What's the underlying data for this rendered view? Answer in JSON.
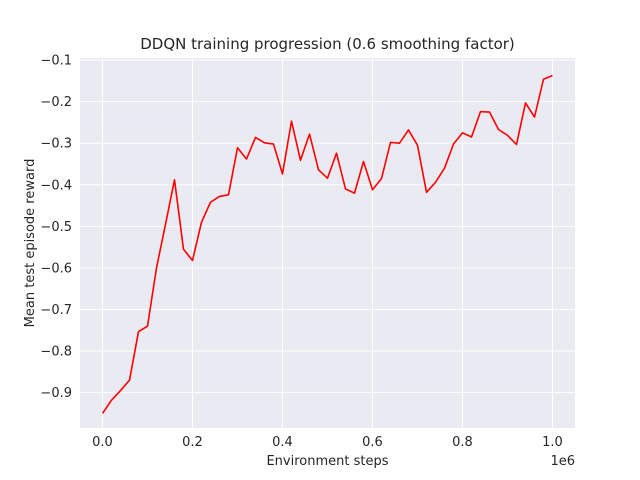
{
  "chart_data": {
    "type": "line",
    "title": "DDQN training progression (0.6 smoothing factor)",
    "xlabel": "Environment steps",
    "ylabel": "Mean test episode reward",
    "x_offset_label": "1e6",
    "xlim": [
      -0.05,
      1.05
    ],
    "ylim": [
      -0.985,
      -0.095
    ],
    "x_ticks": [
      0.0,
      0.2,
      0.4,
      0.6,
      0.8,
      1.0
    ],
    "x_tick_labels": [
      "0.0",
      "0.2",
      "0.4",
      "0.6",
      "0.8",
      "1.0"
    ],
    "y_ticks": [
      -0.9,
      -0.8,
      -0.7,
      -0.6,
      -0.5,
      -0.4,
      -0.3,
      -0.2,
      -0.1
    ],
    "y_tick_labels": [
      "−0.9",
      "−0.8",
      "−0.7",
      "−0.6",
      "−0.5",
      "−0.4",
      "−0.3",
      "−0.2",
      "−0.1"
    ],
    "grid": true,
    "background": "#eaeaf2",
    "grid_color": "#ffffff",
    "series": [
      {
        "color": "#ff0000",
        "x": [
          0.0,
          0.02,
          0.04,
          0.06,
          0.08,
          0.1,
          0.12,
          0.14,
          0.16,
          0.18,
          0.2,
          0.22,
          0.24,
          0.26,
          0.28,
          0.3,
          0.32,
          0.34,
          0.36,
          0.38,
          0.4,
          0.42,
          0.44,
          0.46,
          0.48,
          0.5,
          0.52,
          0.54,
          0.56,
          0.58,
          0.6,
          0.62,
          0.64,
          0.66,
          0.68,
          0.7,
          0.72,
          0.74,
          0.76,
          0.78,
          0.8,
          0.82,
          0.84,
          0.86,
          0.88,
          0.9,
          0.92,
          0.94,
          0.96,
          0.98,
          1.0
        ],
        "y": [
          -0.95,
          -0.918,
          -0.895,
          -0.87,
          -0.753,
          -0.74,
          -0.6,
          -0.495,
          -0.388,
          -0.555,
          -0.582,
          -0.49,
          -0.442,
          -0.428,
          -0.424,
          -0.311,
          -0.338,
          -0.286,
          -0.299,
          -0.302,
          -0.374,
          -0.247,
          -0.341,
          -0.278,
          -0.364,
          -0.384,
          -0.324,
          -0.41,
          -0.42,
          -0.344,
          -0.412,
          -0.385,
          -0.298,
          -0.3,
          -0.268,
          -0.305,
          -0.418,
          -0.394,
          -0.36,
          -0.302,
          -0.275,
          -0.285,
          -0.224,
          -0.225,
          -0.267,
          -0.281,
          -0.303,
          -0.203,
          -0.237,
          -0.146,
          -0.137
        ]
      }
    ]
  }
}
